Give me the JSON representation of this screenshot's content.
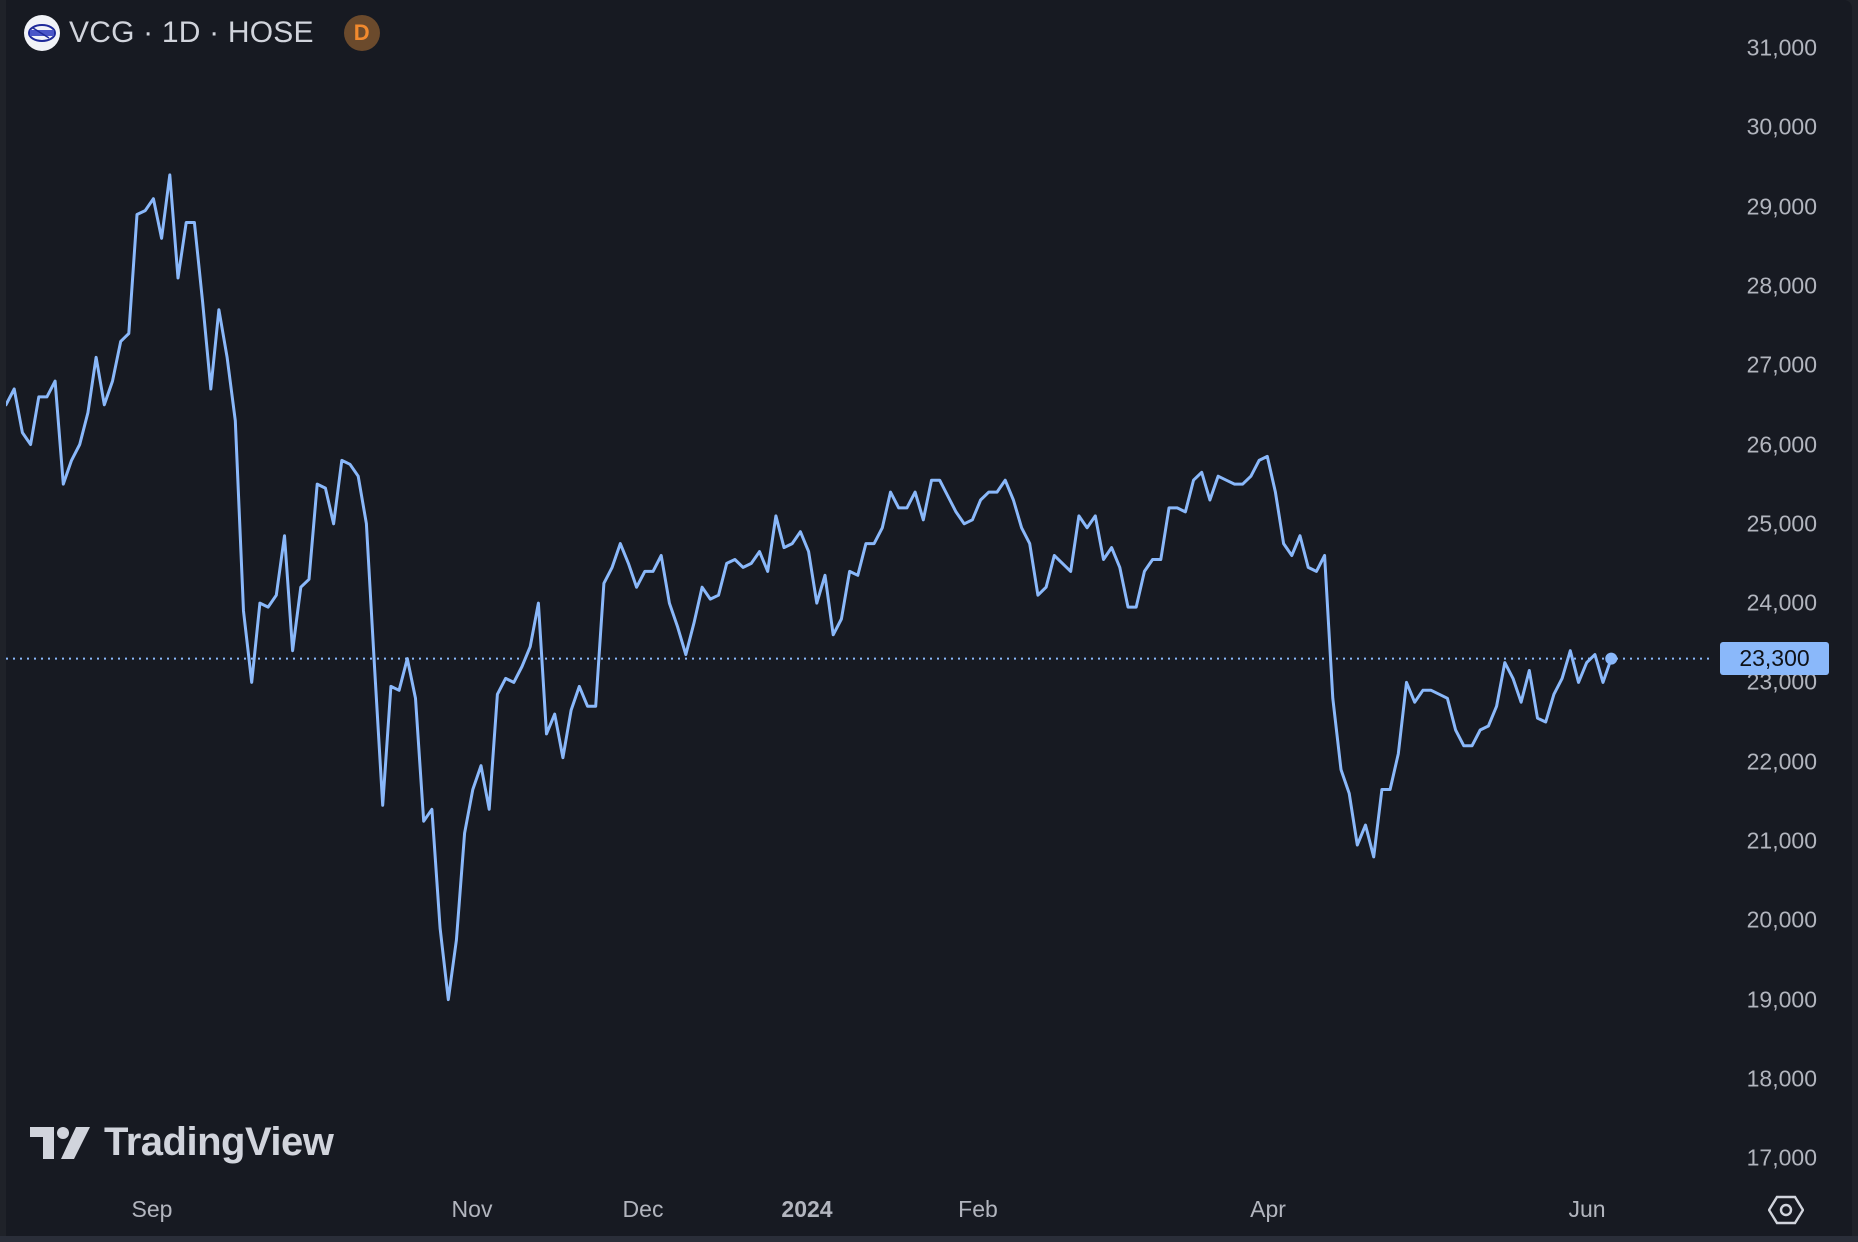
{
  "header": {
    "symbol_icon": "vcg-logo-icon",
    "title": "VCG · 1D · HOSE",
    "badge": "D"
  },
  "branding": {
    "logo_text": "TradingView",
    "logo_icon": "tradingview-logo-icon"
  },
  "price_axis": {
    "labels": [
      "31,000",
      "30,000",
      "29,000",
      "28,000",
      "27,000",
      "26,000",
      "25,000",
      "24,000",
      "23,000",
      "22,000",
      "21,000",
      "20,000",
      "19,000",
      "18,000",
      "17,000"
    ],
    "last_price_label": "23,300"
  },
  "time_axis": {
    "labels": [
      {
        "text": "Sep",
        "bold": false
      },
      {
        "text": "Nov",
        "bold": false
      },
      {
        "text": "Dec",
        "bold": false
      },
      {
        "text": "2024",
        "bold": true
      },
      {
        "text": "Feb",
        "bold": false
      },
      {
        "text": "Apr",
        "bold": false
      },
      {
        "text": "Jun",
        "bold": false
      }
    ]
  },
  "controls": {
    "settings_icon": "settings-hexagon-icon"
  },
  "colors": {
    "background": "#171a22",
    "line": "#8ab8fa",
    "price_badge": "#8ab8fa",
    "axis_text": "#b2b5be",
    "badge_d": "#f28a2e"
  },
  "chart_data": {
    "type": "line",
    "title": "VCG · 1D · HOSE",
    "xlabel": "",
    "ylabel": "",
    "ylim": [
      17000,
      31000
    ],
    "grid": false,
    "legend": "none",
    "x_tick_labels": [
      "Sep",
      "Nov",
      "Dec",
      "2024",
      "Feb",
      "Apr",
      "Jun"
    ],
    "y_tick_labels": [
      "17,000",
      "18,000",
      "19,000",
      "20,000",
      "21,000",
      "22,000",
      "23,000",
      "24,000",
      "25,000",
      "26,000",
      "27,000",
      "28,000",
      "29,000",
      "30,000",
      "31,000"
    ],
    "last_value": 23300,
    "series": [
      {
        "name": "VCG close",
        "values": [
          26500,
          26700,
          26150,
          26000,
          26600,
          26600,
          26800,
          25500,
          25800,
          26000,
          26400,
          27100,
          26500,
          26800,
          27300,
          27400,
          28900,
          28950,
          29100,
          28600,
          29400,
          28100,
          28800,
          28800,
          27800,
          26700,
          27700,
          27100,
          26300,
          23900,
          23000,
          24000,
          23950,
          24100,
          24850,
          23400,
          24200,
          24300,
          25500,
          25450,
          25000,
          25800,
          25750,
          25600,
          25000,
          23200,
          21450,
          22950,
          22900,
          23300,
          22800,
          21250,
          21400,
          19900,
          19000,
          19750,
          21100,
          21650,
          21950,
          21400,
          22850,
          23050,
          23000,
          23200,
          23450,
          24000,
          22350,
          22600,
          22050,
          22650,
          22950,
          22700,
          22700,
          24250,
          24450,
          24750,
          24500,
          24200,
          24400,
          24400,
          24600,
          24000,
          23700,
          23350,
          23750,
          24200,
          24050,
          24100,
          24500,
          24550,
          24450,
          24500,
          24650,
          24400,
          25100,
          24700,
          24750,
          24900,
          24650,
          24000,
          24350,
          23600,
          23800,
          24400,
          24350,
          24750,
          24750,
          24950,
          25400,
          25200,
          25200,
          25400,
          25050,
          25550,
          25550,
          25350,
          25150,
          25000,
          25050,
          25300,
          25400,
          25400,
          25550,
          25300,
          24950,
          24750,
          24100,
          24200,
          24600,
          24500,
          24400,
          25100,
          24950,
          25100,
          24550,
          24700,
          24450,
          23950,
          23950,
          24400,
          24550,
          24550,
          25200,
          25200,
          25150,
          25550,
          25650,
          25300,
          25600,
          25550,
          25500,
          25500,
          25600,
          25800,
          25850,
          25400,
          24750,
          24600,
          24850,
          24450,
          24400,
          24600,
          22800,
          21900,
          21600,
          20950,
          21200,
          20800,
          21650,
          21650,
          22100,
          23000,
          22750,
          22900,
          22900,
          22850,
          22800,
          22400,
          22200,
          22200,
          22400,
          22450,
          22700,
          23250,
          23050,
          22750,
          23150,
          22550,
          22500,
          22850,
          23050,
          23400,
          23000,
          23250,
          23350,
          23000,
          23300
        ]
      }
    ]
  }
}
